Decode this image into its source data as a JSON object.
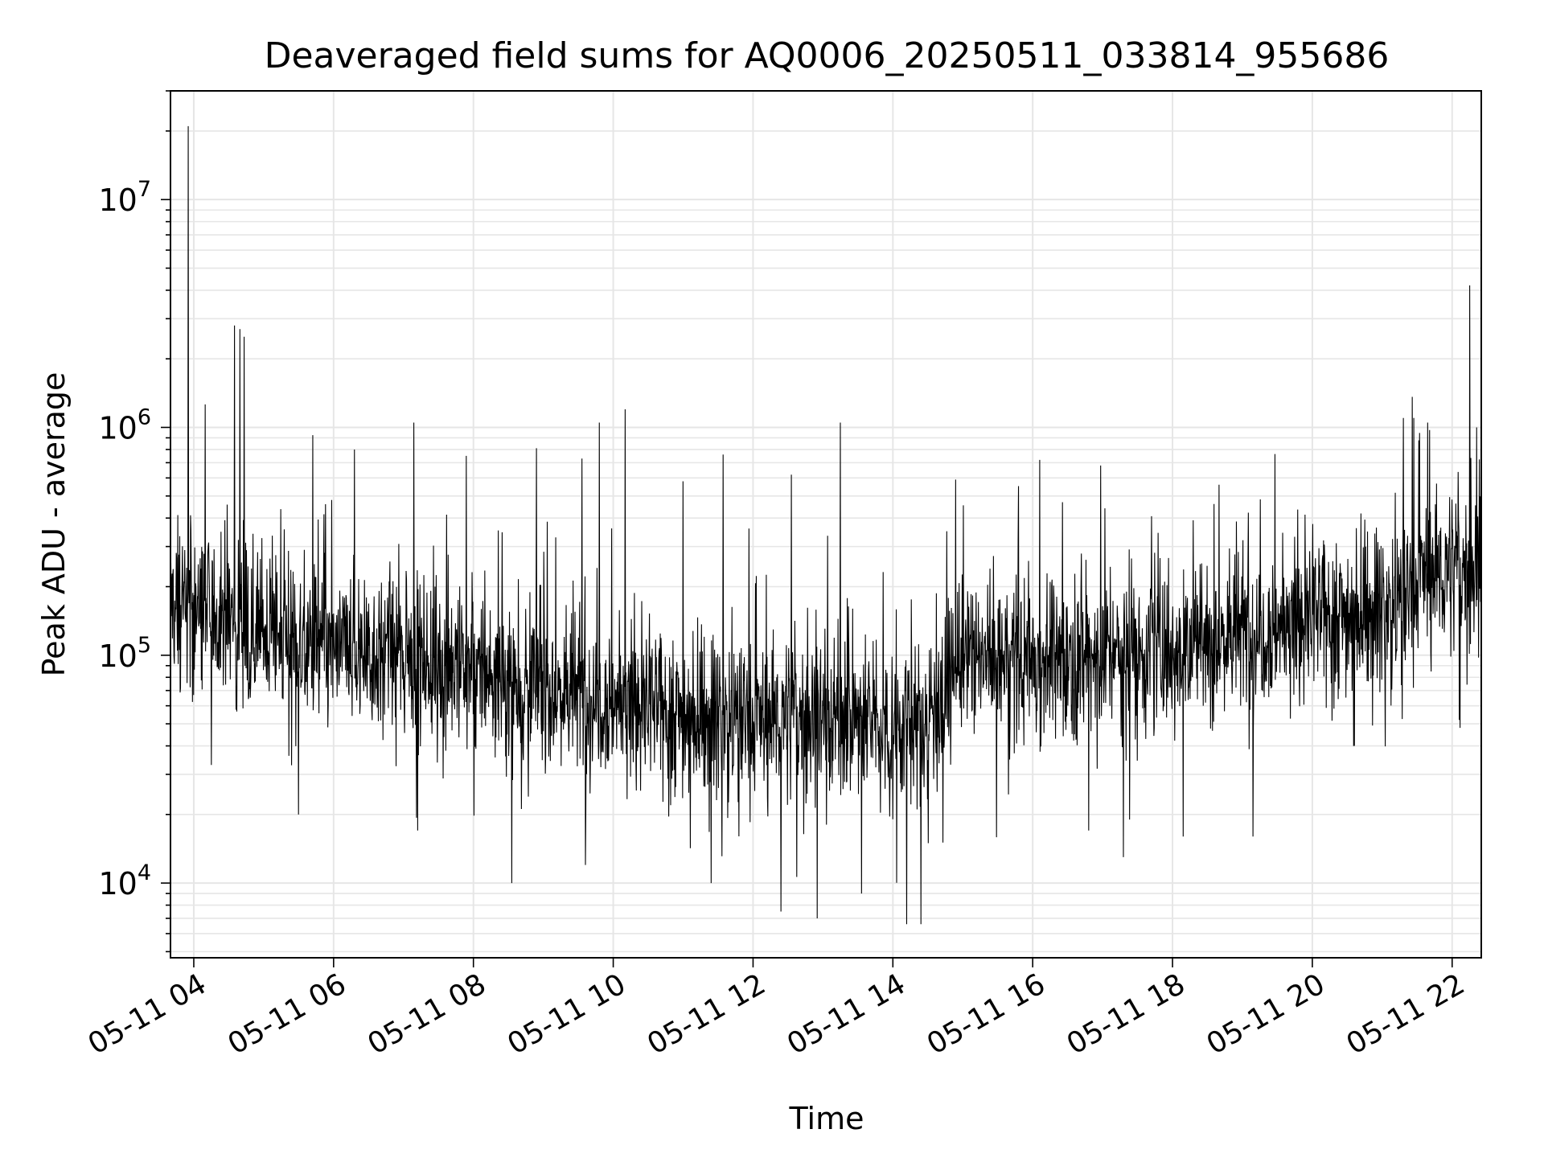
{
  "chart_data": {
    "type": "line",
    "title": "Deaveraged field sums for AQ0006_20250511_033814_955686",
    "xlabel": "Time",
    "ylabel": "Peak ADU - average",
    "yscale": "log",
    "xlim": [
      "2025-05-11 03:40",
      "2025-05-11 22:25"
    ],
    "ylim": [
      4700,
      30000000
    ],
    "x_ticks": [
      "05-11 04",
      "05-11 06",
      "05-11 08",
      "05-11 10",
      "05-11 12",
      "05-11 14",
      "05-11 16",
      "05-11 18",
      "05-11 20",
      "05-11 22"
    ],
    "y_ticks": [
      {
        "base": "10",
        "exp": "4",
        "value": 10000
      },
      {
        "base": "10",
        "exp": "5",
        "value": 100000
      },
      {
        "base": "10",
        "exp": "6",
        "value": 1000000
      },
      {
        "base": "10",
        "exp": "7",
        "value": 10000000
      }
    ],
    "grid": true,
    "line_color": "#000000",
    "series": [
      {
        "values_note": "trend of the dense signal, x in hours of 2025-05-11, y in ADU",
        "trend": [
          [
            3.67,
            170000
          ],
          [
            4.0,
            165000
          ],
          [
            4.6,
            140000
          ],
          [
            5.0,
            125000
          ],
          [
            6.0,
            105000
          ],
          [
            7.0,
            100000
          ],
          [
            8.0,
            85000
          ],
          [
            9.0,
            72000
          ],
          [
            10.0,
            63000
          ],
          [
            11.0,
            55000
          ],
          [
            12.0,
            52000
          ],
          [
            13.0,
            55000
          ],
          [
            13.8,
            50000
          ],
          [
            14.3,
            48000
          ],
          [
            14.8,
            75000
          ],
          [
            15.0,
            95000
          ],
          [
            16.0,
            95000
          ],
          [
            17.0,
            100000
          ],
          [
            18.0,
            110000
          ],
          [
            19.0,
            125000
          ],
          [
            20.0,
            145000
          ],
          [
            21.0,
            160000
          ],
          [
            21.35,
            175000
          ],
          [
            21.5,
            220000
          ],
          [
            22.0,
            240000
          ],
          [
            22.4,
            250000
          ]
        ],
        "peaks": [
          [
            3.92,
            21000000
          ],
          [
            4.58,
            2800000
          ],
          [
            4.66,
            2700000
          ],
          [
            4.72,
            2500000
          ],
          [
            5.97,
            480000
          ],
          [
            6.3,
            800000
          ],
          [
            7.15,
            1050000
          ],
          [
            7.9,
            750000
          ],
          [
            8.9,
            810000
          ],
          [
            9.55,
            730000
          ],
          [
            9.8,
            1050000
          ],
          [
            10.17,
            1200000
          ],
          [
            11.0,
            580000
          ],
          [
            11.57,
            760000
          ],
          [
            12.55,
            620000
          ],
          [
            13.25,
            1050000
          ],
          [
            14.9,
            590000
          ],
          [
            16.1,
            720000
          ],
          [
            16.97,
            680000
          ],
          [
            21.3,
            1100000
          ],
          [
            21.45,
            1100000
          ],
          [
            21.65,
            1050000
          ],
          [
            22.25,
            4200000
          ],
          [
            22.35,
            1000000
          ]
        ],
        "dips": [
          [
            4.25,
            33000
          ],
          [
            5.5,
            20000
          ],
          [
            7.2,
            17000
          ],
          [
            8.55,
            10000
          ],
          [
            9.6,
            12000
          ],
          [
            11.4,
            10000
          ],
          [
            12.4,
            7500
          ],
          [
            12.92,
            7000
          ],
          [
            13.55,
            9000
          ],
          [
            14.2,
            6600
          ],
          [
            14.4,
            6600
          ],
          [
            16.8,
            17000
          ],
          [
            17.3,
            13000
          ],
          [
            18.15,
            16000
          ],
          [
            19.15,
            16000
          ],
          [
            20.6,
            40000
          ],
          [
            22.1,
            52000
          ]
        ]
      }
    ]
  }
}
